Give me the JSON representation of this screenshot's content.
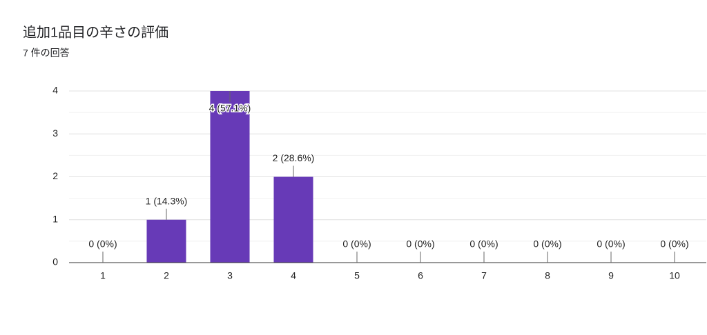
{
  "chart_data": {
    "type": "bar",
    "title": "追加1品目の辛さの評価",
    "subtitle": "7 件の回答",
    "categories": [
      "1",
      "2",
      "3",
      "4",
      "5",
      "6",
      "7",
      "8",
      "9",
      "10"
    ],
    "values": [
      0,
      1,
      4,
      2,
      0,
      0,
      0,
      0,
      0,
      0
    ],
    "value_labels": [
      "0 (0%)",
      "1 (14.3%)",
      "4 (57.1%)",
      "2 (28.6%)",
      "0 (0%)",
      "0 (0%)",
      "0 (0%)",
      "0 (0%)",
      "0 (0%)",
      "0 (0%)"
    ],
    "color": "#673ab7",
    "ylim": [
      0,
      4
    ],
    "yticks": [
      0,
      1,
      2,
      3,
      4
    ],
    "grid": true
  }
}
